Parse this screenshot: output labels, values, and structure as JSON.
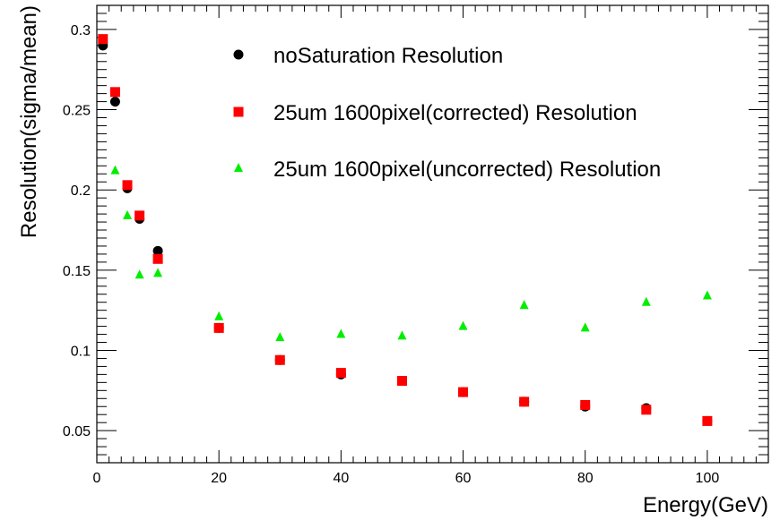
{
  "chart_data": {
    "type": "scatter",
    "xlabel": "Energy(GeV)",
    "ylabel": "Resolution(sigma/mean)",
    "xlim": [
      0,
      110
    ],
    "ylim": [
      0.03,
      0.315
    ],
    "x_ticks": [
      0,
      20,
      40,
      60,
      80,
      100
    ],
    "x_tick_labels": [
      "0",
      "20",
      "40",
      "60",
      "80",
      "100"
    ],
    "y_ticks": [
      0.05,
      0.1,
      0.15,
      0.2,
      0.25,
      0.3
    ],
    "y_tick_labels": [
      "0.05",
      "0.1",
      "0.15",
      "0.2",
      "0.25",
      "0.3"
    ],
    "grid": false,
    "legend_position": "top-center",
    "series": [
      {
        "name": "noSaturation Resolution",
        "marker": "circle",
        "color": "#000000",
        "points": [
          [
            1,
            0.29
          ],
          [
            3,
            0.255
          ],
          [
            5,
            0.201
          ],
          [
            7,
            0.182
          ],
          [
            10,
            0.162
          ],
          [
            20,
            0.114
          ],
          [
            30,
            0.094
          ],
          [
            40,
            0.085
          ],
          [
            50,
            0.081
          ],
          [
            60,
            0.074
          ],
          [
            70,
            0.068
          ],
          [
            80,
            0.065
          ],
          [
            90,
            0.064
          ],
          [
            100,
            0.056
          ]
        ]
      },
      {
        "name": "25um 1600pixel(corrected) Resolution",
        "marker": "square",
        "color": "#ff0000",
        "points": [
          [
            1,
            0.294
          ],
          [
            3,
            0.261
          ],
          [
            5,
            0.203
          ],
          [
            7,
            0.184
          ],
          [
            10,
            0.157
          ],
          [
            20,
            0.114
          ],
          [
            30,
            0.094
          ],
          [
            40,
            0.086
          ],
          [
            50,
            0.081
          ],
          [
            60,
            0.074
          ],
          [
            70,
            0.068
          ],
          [
            80,
            0.066
          ],
          [
            90,
            0.063
          ],
          [
            100,
            0.056
          ]
        ]
      },
      {
        "name": "25um 1600pixel(uncorrected) Resolution",
        "marker": "triangle",
        "color": "#00ee00",
        "points": [
          [
            1,
            0.294
          ],
          [
            3,
            0.212
          ],
          [
            5,
            0.184
          ],
          [
            7,
            0.147
          ],
          [
            10,
            0.148
          ],
          [
            20,
            0.121
          ],
          [
            30,
            0.108
          ],
          [
            40,
            0.11
          ],
          [
            50,
            0.109
          ],
          [
            60,
            0.115
          ],
          [
            70,
            0.128
          ],
          [
            80,
            0.114
          ],
          [
            90,
            0.13
          ],
          [
            100,
            0.134
          ]
        ]
      }
    ]
  }
}
